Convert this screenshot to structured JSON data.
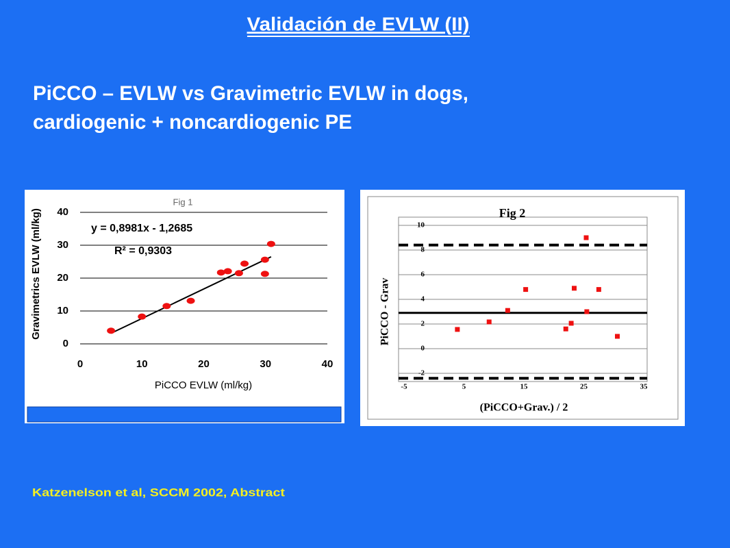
{
  "slide": {
    "title": "Validación de EVLW (II)",
    "subtitle": [
      "PiCCO – EVLW vs Gravimetric EVLW in dogs,",
      "cardiogenic + noncardiogenic PE"
    ],
    "citation": "Katzenelson et al, SCCM 2002, Abstract"
  },
  "chart_data": [
    {
      "type": "scatter",
      "title": "Fig 1",
      "xlabel": "PiCCO EVLW (ml/kg)",
      "ylabel": "Gravimetrics EVLW (ml/kg)",
      "x": [
        5,
        10,
        14,
        17.9,
        22.8,
        23.9,
        25.7,
        26.6,
        29.9,
        29.9,
        30.9
      ],
      "values": [
        4,
        8.3,
        11.5,
        13.1,
        21.7,
        22.1,
        21.5,
        24.4,
        25.6,
        21.3,
        30.4
      ],
      "color": "#ee1111",
      "xlim": [
        0,
        40
      ],
      "xticks": [
        0,
        10,
        20,
        30,
        40
      ],
      "ylim": [
        0,
        40
      ],
      "yticks": [
        0,
        10,
        20,
        30,
        40
      ],
      "grid": true,
      "fit": {
        "slope": 0.8981,
        "intercept": -1.2685,
        "label": "y = 0,8981x - 1,2685",
        "r2_label": "R² = 0,9303"
      }
    },
    {
      "type": "scatter",
      "title": "Fig 2",
      "xlabel": "(PiCCO+Grav.) / 2",
      "ylabel": "PiCCO - Grav",
      "x": [
        3.9,
        9.2,
        12.3,
        15.3,
        22,
        22.9,
        23.4,
        25.4,
        25.5,
        27.5,
        30.6
      ],
      "values": [
        1.56,
        2.17,
        3.1,
        4.8,
        1.6,
        2.06,
        4.9,
        9,
        3,
        4.8,
        1
      ],
      "color": "#ee1111",
      "xlim": [
        -5,
        35
      ],
      "xticks": [
        -5,
        5,
        15,
        25,
        35
      ],
      "ylim": [
        -2,
        10
      ],
      "yticks": [
        -2,
        0,
        2,
        4,
        6,
        8,
        10
      ],
      "grid": true,
      "hlines": [
        {
          "value": 2.9,
          "style": "solid"
        },
        {
          "value": 8.4,
          "style": "dashed"
        },
        {
          "value": -2.4,
          "style": "dashed"
        }
      ]
    }
  ]
}
